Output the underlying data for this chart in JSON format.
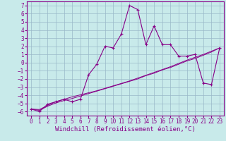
{
  "xlabel": "Windchill (Refroidissement éolien,°C)",
  "bg_color": "#c8eaea",
  "grid_color": "#9ab8c8",
  "line_color": "#880088",
  "xlim": [
    -0.5,
    23.5
  ],
  "ylim": [
    -6.5,
    7.5
  ],
  "xticks": [
    0,
    1,
    2,
    3,
    4,
    5,
    6,
    7,
    8,
    9,
    10,
    11,
    12,
    13,
    14,
    15,
    16,
    17,
    18,
    19,
    20,
    21,
    22,
    23
  ],
  "yticks": [
    7,
    6,
    5,
    4,
    3,
    2,
    1,
    0,
    -1,
    -2,
    -3,
    -4,
    -5,
    -6
  ],
  "main_x": [
    0,
    1,
    2,
    3,
    4,
    5,
    6,
    7,
    8,
    9,
    10,
    11,
    12,
    13,
    14,
    15,
    16,
    17,
    18,
    19,
    20,
    21,
    22,
    23
  ],
  "main_y": [
    -5.7,
    -6.0,
    -5.1,
    -4.8,
    -4.5,
    -4.8,
    -4.5,
    -1.5,
    -0.2,
    2.0,
    1.8,
    3.5,
    7.0,
    6.5,
    2.2,
    4.5,
    2.2,
    2.2,
    0.8,
    0.8,
    1.0,
    -2.5,
    -2.7,
    1.8
  ],
  "line2_x": [
    0,
    1,
    2,
    3,
    4,
    5,
    6,
    7,
    8,
    9,
    10,
    11,
    12,
    13,
    14,
    15,
    16,
    17,
    18,
    19,
    20,
    21,
    22,
    23
  ],
  "line2_y": [
    -5.7,
    -5.85,
    -5.35,
    -4.95,
    -4.65,
    -4.4,
    -4.1,
    -3.8,
    -3.5,
    -3.2,
    -2.9,
    -2.6,
    -2.3,
    -2.0,
    -1.6,
    -1.3,
    -0.9,
    -0.6,
    -0.2,
    0.2,
    0.5,
    0.9,
    1.3,
    1.8
  ],
  "line3_x": [
    0,
    1,
    2,
    3,
    4,
    5,
    6,
    7,
    8,
    9,
    10,
    11,
    12,
    13,
    14,
    15,
    16,
    17,
    18,
    19,
    20,
    21,
    22,
    23
  ],
  "line3_y": [
    -5.7,
    -5.75,
    -5.25,
    -4.8,
    -4.5,
    -4.2,
    -3.95,
    -3.7,
    -3.45,
    -3.15,
    -2.85,
    -2.55,
    -2.25,
    -1.9,
    -1.55,
    -1.2,
    -0.85,
    -0.5,
    -0.1,
    0.3,
    0.65,
    1.0,
    1.4,
    1.8
  ],
  "xlabel_fontsize": 6.5,
  "tick_fontsize": 5.5
}
